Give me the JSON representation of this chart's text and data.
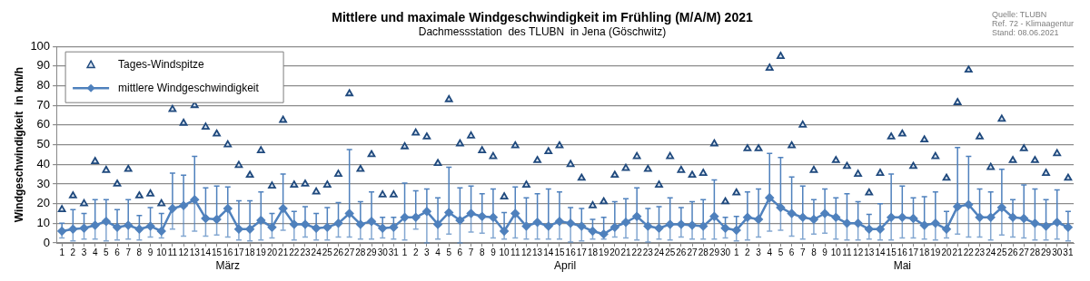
{
  "chart_data": {
    "type": "line",
    "title": "Mittlere und maximale Windgeschwindigkeit im Frühling (M/A/M) 2021",
    "subtitle": "Dachmessstation  des TLUBN  in Jena (Göschwitz)",
    "ylabel": "Windgeschwindigkeit  in km/h",
    "x": [
      "2021-03-01",
      "2021-03-02",
      "2021-03-03",
      "2021-03-04",
      "2021-03-05",
      "2021-03-06",
      "2021-03-07",
      "2021-03-08",
      "2021-03-09",
      "2021-03-10",
      "2021-03-11",
      "2021-03-12",
      "2021-03-13",
      "2021-03-14",
      "2021-03-15",
      "2021-03-16",
      "2021-03-17",
      "2021-03-18",
      "2021-03-19",
      "2021-03-20",
      "2021-03-21",
      "2021-03-22",
      "2021-03-23",
      "2021-03-24",
      "2021-03-25",
      "2021-03-26",
      "2021-03-27",
      "2021-03-28",
      "2021-03-29",
      "2021-03-30",
      "2021-03-31",
      "2021-04-01",
      "2021-04-02",
      "2021-04-03",
      "2021-04-04",
      "2021-04-05",
      "2021-04-06",
      "2021-04-07",
      "2021-04-08",
      "2021-04-09",
      "2021-04-10",
      "2021-04-11",
      "2021-04-12",
      "2021-04-13",
      "2021-04-14",
      "2021-04-15",
      "2021-04-16",
      "2021-04-17",
      "2021-04-18",
      "2021-04-19",
      "2021-04-20",
      "2021-04-21",
      "2021-04-22",
      "2021-04-23",
      "2021-04-24",
      "2021-04-25",
      "2021-04-26",
      "2021-04-27",
      "2021-04-28",
      "2021-04-29",
      "2021-04-30",
      "2021-05-01",
      "2021-05-02",
      "2021-05-03",
      "2021-05-04",
      "2021-05-05",
      "2021-05-06",
      "2021-05-07",
      "2021-05-08",
      "2021-05-09",
      "2021-05-10",
      "2021-05-11",
      "2021-05-12",
      "2021-05-13",
      "2021-05-14",
      "2021-05-15",
      "2021-05-16",
      "2021-05-17",
      "2021-05-18",
      "2021-05-19",
      "2021-05-20",
      "2021-05-21",
      "2021-05-22",
      "2021-05-23",
      "2021-05-24",
      "2021-05-25",
      "2021-05-26",
      "2021-05-27",
      "2021-05-28",
      "2021-05-29",
      "2021-05-30",
      "2021-05-31"
    ],
    "xticks": [
      {
        "value": "2021-03-01",
        "label": "1"
      },
      {
        "value": "2021-03-02",
        "label": "2"
      },
      {
        "value": "2021-03-03",
        "label": "3"
      },
      {
        "value": "2021-03-04",
        "label": "4"
      },
      {
        "value": "2021-03-05",
        "label": "5"
      },
      {
        "value": "2021-03-06",
        "label": "6"
      },
      {
        "value": "2021-03-07",
        "label": "7"
      },
      {
        "value": "2021-03-08",
        "label": "8"
      },
      {
        "value": "2021-03-09",
        "label": "9"
      },
      {
        "value": "2021-03-10",
        "label": "10"
      },
      {
        "value": "2021-03-11",
        "label": "11"
      },
      {
        "value": "2021-03-12",
        "label": "12"
      },
      {
        "value": "2021-03-13",
        "label": "13"
      },
      {
        "value": "2021-03-14",
        "label": "14"
      },
      {
        "value": "2021-03-15",
        "label": "15"
      },
      {
        "value": "2021-03-16",
        "label": "16"
      },
      {
        "value": "2021-03-17",
        "label": "17"
      },
      {
        "value": "2021-03-18",
        "label": "18"
      },
      {
        "value": "2021-03-19",
        "label": "19"
      },
      {
        "value": "2021-03-20",
        "label": "20"
      },
      {
        "value": "2021-03-21",
        "label": "21"
      },
      {
        "value": "2021-03-22",
        "label": "22"
      },
      {
        "value": "2021-03-23",
        "label": "23"
      },
      {
        "value": "2021-03-24",
        "label": "24"
      },
      {
        "value": "2021-03-25",
        "label": "25"
      },
      {
        "value": "2021-03-26",
        "label": "26"
      },
      {
        "value": "2021-03-27",
        "label": "27"
      },
      {
        "value": "2021-03-28",
        "label": "28"
      },
      {
        "value": "2021-03-29",
        "label": "29"
      },
      {
        "value": "2021-03-30",
        "label": "30"
      },
      {
        "value": "2021-03-31",
        "label": "31"
      },
      {
        "value": "2021-04-01",
        "label": "1"
      },
      {
        "value": "2021-04-02",
        "label": "2"
      },
      {
        "value": "2021-04-03",
        "label": "3"
      },
      {
        "value": "2021-04-04",
        "label": "4"
      },
      {
        "value": "2021-04-05",
        "label": "5"
      },
      {
        "value": "2021-04-06",
        "label": "6"
      },
      {
        "value": "2021-04-07",
        "label": "7"
      },
      {
        "value": "2021-04-08",
        "label": "8"
      },
      {
        "value": "2021-04-09",
        "label": "9"
      },
      {
        "value": "2021-04-10",
        "label": "10"
      },
      {
        "value": "2021-04-11",
        "label": "11"
      },
      {
        "value": "2021-04-12",
        "label": "12"
      },
      {
        "value": "2021-04-13",
        "label": "13"
      },
      {
        "value": "2021-04-14",
        "label": "14"
      },
      {
        "value": "2021-04-15",
        "label": "15"
      },
      {
        "value": "2021-04-16",
        "label": "16"
      },
      {
        "value": "2021-04-17",
        "label": "17"
      },
      {
        "value": "2021-04-18",
        "label": "18"
      },
      {
        "value": "2021-04-19",
        "label": "19"
      },
      {
        "value": "2021-04-20",
        "label": "20"
      },
      {
        "value": "2021-04-21",
        "label": "21"
      },
      {
        "value": "2021-04-22",
        "label": "22"
      },
      {
        "value": "2021-04-23",
        "label": "23"
      },
      {
        "value": "2021-04-24",
        "label": "24"
      },
      {
        "value": "2021-04-25",
        "label": "25"
      },
      {
        "value": "2021-04-26",
        "label": "26"
      },
      {
        "value": "2021-04-27",
        "label": "27"
      },
      {
        "value": "2021-04-28",
        "label": "28"
      },
      {
        "value": "2021-04-29",
        "label": "29"
      },
      {
        "value": "2021-04-30",
        "label": "30"
      },
      {
        "value": "2021-05-01",
        "label": "1"
      },
      {
        "value": "2021-05-02",
        "label": "2"
      },
      {
        "value": "2021-05-03",
        "label": "3"
      },
      {
        "value": "2021-05-04",
        "label": "4"
      },
      {
        "value": "2021-05-05",
        "label": "5"
      },
      {
        "value": "2021-05-06",
        "label": "6"
      },
      {
        "value": "2021-05-07",
        "label": "7"
      },
      {
        "value": "2021-05-08",
        "label": "8"
      },
      {
        "value": "2021-05-09",
        "label": "9"
      },
      {
        "value": "2021-05-10",
        "label": "10"
      },
      {
        "value": "2021-05-11",
        "label": "11"
      },
      {
        "value": "2021-05-12",
        "label": "12"
      },
      {
        "value": "2021-05-13",
        "label": "13"
      },
      {
        "value": "2021-05-14",
        "label": "14"
      },
      {
        "value": "2021-05-15",
        "label": "15"
      },
      {
        "value": "2021-05-16",
        "label": "16"
      },
      {
        "value": "2021-05-17",
        "label": "17"
      },
      {
        "value": "2021-05-18",
        "label": "18"
      },
      {
        "value": "2021-05-19",
        "label": "19"
      },
      {
        "value": "2021-05-20",
        "label": "20"
      },
      {
        "value": "2021-05-21",
        "label": "21"
      },
      {
        "value": "2021-05-22",
        "label": "22"
      },
      {
        "value": "2021-05-23",
        "label": "23"
      },
      {
        "value": "2021-05-24",
        "label": "24"
      },
      {
        "value": "2021-05-25",
        "label": "25"
      },
      {
        "value": "2021-05-26",
        "label": "26"
      },
      {
        "value": "2021-05-27",
        "label": "27"
      },
      {
        "value": "2021-05-28",
        "label": "28"
      },
      {
        "value": "2021-05-29",
        "label": "29"
      },
      {
        "value": "2021-05-30",
        "label": "30"
      },
      {
        "value": "2021-05-31",
        "label": "31"
      }
    ],
    "xlim": [
      "2021-02-28T12:00",
      "2021-05-31T12:00"
    ],
    "ylim": [
      0,
      100
    ],
    "yticks": [
      0,
      10,
      20,
      30,
      40,
      50,
      60,
      70,
      80,
      90,
      100
    ],
    "grid": "y",
    "legend": "top left",
    "series": [
      {
        "name": "Tages-Windspitze",
        "type": "scatter",
        "marker": "triangle",
        "color": "#1f497d",
        "values": [
          17,
          24,
          20,
          41.5,
          37,
          30,
          37.5,
          24,
          25,
          20,
          68,
          61,
          70,
          59,
          55.5,
          50,
          39.5,
          34.5,
          47,
          29,
          62.5,
          29.5,
          30,
          26,
          29.5,
          35,
          76,
          37.5,
          45,
          24.5,
          24.5,
          49,
          56,
          54,
          40.5,
          73,
          50.5,
          54.5,
          47,
          44,
          23.5,
          49.5,
          29.5,
          42,
          46.5,
          49.5,
          40,
          33,
          19,
          21,
          34.5,
          38,
          44,
          37.5,
          29.5,
          44,
          37,
          34.5,
          35.5,
          50.5,
          21,
          25.5,
          48,
          48,
          89,
          95,
          49.5,
          60,
          37,
          null,
          42,
          39,
          35,
          25.5,
          35.5,
          54,
          55.5,
          39,
          52.5,
          44,
          33,
          71.5,
          88,
          54,
          38.5,
          63,
          42,
          48,
          42,
          35.5,
          45.5,
          33
        ]
      },
      {
        "name": "mittlere Windgeschwindigkeit",
        "type": "line",
        "marker": "diamond",
        "color": "#4f81bd",
        "values": [
          6,
          7,
          7.5,
          9,
          11,
          8,
          9,
          7,
          8.5,
          6,
          17.5,
          19,
          22,
          12.5,
          12,
          17.5,
          7,
          7,
          11.5,
          8,
          17.5,
          9.5,
          9.5,
          7.5,
          8,
          10,
          15,
          9.5,
          11,
          7.5,
          8,
          13,
          13,
          16,
          9.5,
          15.5,
          11.5,
          15,
          13.5,
          13,
          6,
          15,
          8.5,
          10.5,
          8.5,
          11,
          10,
          8.5,
          6,
          4.5,
          8,
          10.5,
          13.5,
          8.5,
          7.5,
          9.5,
          9.5,
          9,
          8.5,
          13.5,
          7.5,
          6.5,
          13,
          12,
          23,
          18,
          15,
          13,
          12,
          15,
          13,
          10,
          10,
          7,
          7,
          13,
          13,
          12.5,
          9,
          10,
          7,
          18.5,
          19.5,
          13,
          13,
          18,
          13,
          12.5,
          10,
          8.5,
          10.5,
          8
        ],
        "errors": [
          [
            2.5,
            10
          ],
          [
            1,
            17
          ],
          [
            2,
            15
          ],
          [
            2,
            22
          ],
          [
            1,
            22
          ],
          [
            1.5,
            17
          ],
          [
            2,
            22
          ],
          [
            1.5,
            14
          ],
          [
            3,
            18
          ],
          [
            2.5,
            15
          ],
          [
            7,
            35.5
          ],
          [
            3.5,
            34.5
          ],
          [
            6,
            44
          ],
          [
            3.5,
            28
          ],
          [
            4,
            29
          ],
          [
            3,
            28.5
          ],
          [
            1.5,
            21.5
          ],
          [
            1,
            21.5
          ],
          [
            1.5,
            26
          ],
          [
            2.5,
            15
          ],
          [
            6.5,
            35
          ],
          [
            1.5,
            16
          ],
          [
            3,
            18.5
          ],
          [
            1.5,
            15
          ],
          [
            1.5,
            18
          ],
          [
            3,
            20.5
          ],
          [
            3,
            47.5
          ],
          [
            2,
            21
          ],
          [
            2,
            26
          ],
          [
            2.5,
            13
          ],
          [
            2,
            13
          ],
          [
            1.5,
            30.5
          ],
          [
            7,
            26.5
          ],
          [
            0,
            27.5
          ],
          [
            2,
            23
          ],
          [
            4.5,
            38.5
          ],
          [
            0,
            28
          ],
          [
            5.5,
            29
          ],
          [
            5,
            25
          ],
          [
            2.5,
            27.5
          ],
          [
            2,
            15.5
          ],
          [
            2.5,
            28.5
          ],
          [
            2,
            23
          ],
          [
            2,
            25
          ],
          [
            2,
            27.5
          ],
          [
            2,
            26
          ],
          [
            0.5,
            18
          ],
          [
            1,
            17.5
          ],
          [
            2,
            12
          ],
          [
            2,
            13
          ],
          [
            3,
            21
          ],
          [
            2.5,
            22.5
          ],
          [
            1.5,
            28
          ],
          [
            0.5,
            17.5
          ],
          [
            2,
            18.5
          ],
          [
            1.5,
            23
          ],
          [
            3,
            18
          ],
          [
            2,
            21
          ],
          [
            2,
            22
          ],
          [
            2,
            32
          ],
          [
            2.5,
            13
          ],
          [
            1,
            13.5
          ],
          [
            1.5,
            26
          ],
          [
            3,
            27.5
          ],
          [
            6,
            45.5
          ],
          [
            6.5,
            43.5
          ],
          [
            3.5,
            33.5
          ],
          [
            2,
            29
          ],
          [
            4.5,
            22
          ],
          [
            5,
            27.5
          ],
          [
            2,
            23
          ],
          [
            1.5,
            25
          ],
          [
            1.5,
            21
          ],
          [
            2,
            14.5
          ],
          [
            1.5,
            20
          ],
          [
            1.5,
            35
          ],
          [
            2.5,
            29
          ],
          [
            2.5,
            23
          ],
          [
            2,
            23.5
          ],
          [
            1.5,
            26
          ],
          [
            2.5,
            16
          ],
          [
            4.5,
            48.5
          ],
          [
            3,
            44
          ],
          [
            3,
            27.5
          ],
          [
            1.5,
            26
          ],
          [
            4,
            37.5
          ],
          [
            3,
            22
          ],
          [
            2.5,
            29.5
          ],
          [
            1.5,
            27.5
          ],
          [
            1.5,
            22
          ],
          [
            2,
            27
          ],
          [
            1,
            16
          ]
        ]
      }
    ],
    "annotations": [
      "Quelle: TLUBN",
      "Ref. 72 - Klimaagentur",
      "Stand: 08.06.2021",
      "März",
      "April",
      "Mai"
    ]
  }
}
